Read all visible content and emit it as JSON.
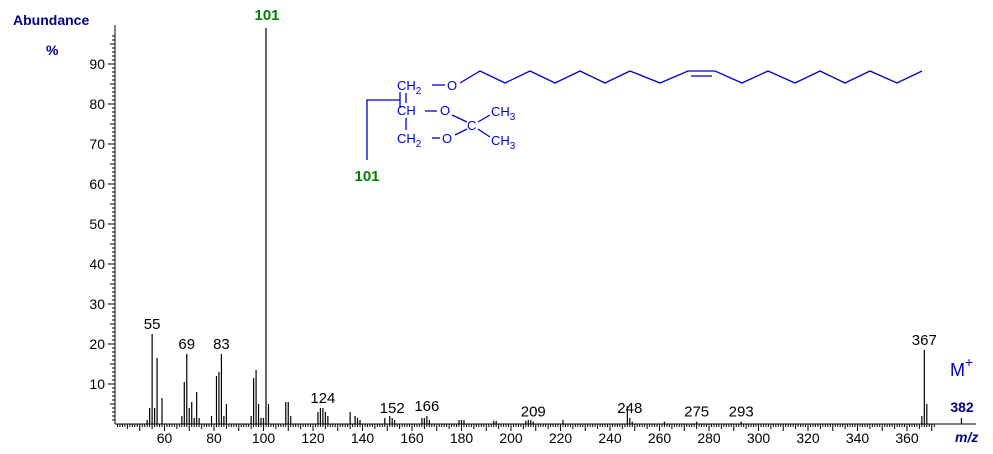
{
  "chart_data": {
    "type": "bar",
    "ylabel": "Abundance",
    "yunit": "%",
    "xlabel": "m/z",
    "xlim": [
      40,
      371
    ],
    "ylim": [
      0,
      100
    ],
    "x_ticks": [
      60,
      80,
      100,
      120,
      140,
      160,
      180,
      200,
      220,
      240,
      260,
      280,
      300,
      320,
      340,
      360
    ],
    "y_ticks": [
      10,
      20,
      30,
      40,
      50,
      60,
      70,
      80,
      90
    ],
    "series": [
      {
        "mz": [
          53,
          54,
          55,
          56,
          57,
          59,
          67,
          68,
          69,
          70,
          71,
          72,
          73,
          74,
          79,
          81,
          82,
          83,
          84,
          85,
          95,
          96,
          97,
          98,
          99,
          100,
          101,
          102,
          109,
          110,
          111,
          122,
          123,
          124,
          125,
          126,
          135,
          137,
          138,
          139,
          149,
          151,
          152,
          153,
          164,
          165,
          166,
          167,
          179,
          180,
          181,
          193,
          194,
          206,
          207,
          208,
          209,
          221,
          247,
          248,
          249,
          262,
          275,
          293,
          366,
          367,
          368,
          382
        ],
        "abundance": [
          1,
          4,
          22.5,
          4,
          16.5,
          6.5,
          2,
          10.5,
          17.5,
          4,
          5.5,
          1.5,
          8,
          1.5,
          2,
          12,
          13,
          17.5,
          2,
          5,
          2,
          11.5,
          13.5,
          5,
          1.5,
          1.5,
          99,
          5,
          5.5,
          5.5,
          2,
          3,
          4,
          4,
          3,
          2,
          3,
          2,
          1.5,
          1,
          1.5,
          2,
          1.5,
          1,
          1.5,
          1.5,
          2,
          1,
          1,
          1,
          1,
          0.8,
          0.8,
          0.8,
          1,
          1,
          0.6,
          1,
          4.5,
          1.5,
          0.6,
          0.6,
          0.6,
          0.6,
          2,
          18.5,
          5,
          1.5
        ]
      }
    ],
    "peak_labels": [
      {
        "mz": 55,
        "text": "55"
      },
      {
        "mz": 69,
        "text": "69"
      },
      {
        "mz": 83,
        "text": "83"
      },
      {
        "mz": 101,
        "text": "101"
      },
      {
        "mz": 124,
        "text": "124"
      },
      {
        "mz": 152,
        "text": "152"
      },
      {
        "mz": 166,
        "text": "166"
      },
      {
        "mz": 209,
        "text": "209"
      },
      {
        "mz": 248,
        "text": "248"
      },
      {
        "mz": 275,
        "text": "275"
      },
      {
        "mz": 293,
        "text": "293"
      },
      {
        "mz": 367,
        "text": "367"
      }
    ],
    "annotations": {
      "base_peak": "101",
      "fragment": "101",
      "molecular_ion_label": "M",
      "molecular_ion_charge": "+",
      "molecular_ion_mz": "382"
    },
    "structure_labels": {
      "ch2_top": "CH",
      "ch2_top_sub": "2",
      "o_top": "O",
      "ch_mid": "CH",
      "o_mid": "O",
      "c_quat": "C",
      "ch3_a": "CH",
      "ch3_a_sub": "3",
      "ch2_bot": "CH",
      "ch2_bot_sub": "2",
      "o_bot": "O",
      "ch3_b": "CH",
      "ch3_b_sub": "3"
    },
    "colors": {
      "bars": "#000000",
      "base_peak_label": "#008000",
      "axis_label": "#00008b",
      "molecule": "#0000cc",
      "m_plus": "#0000cc",
      "m_plus_value": "#00008b"
    }
  }
}
